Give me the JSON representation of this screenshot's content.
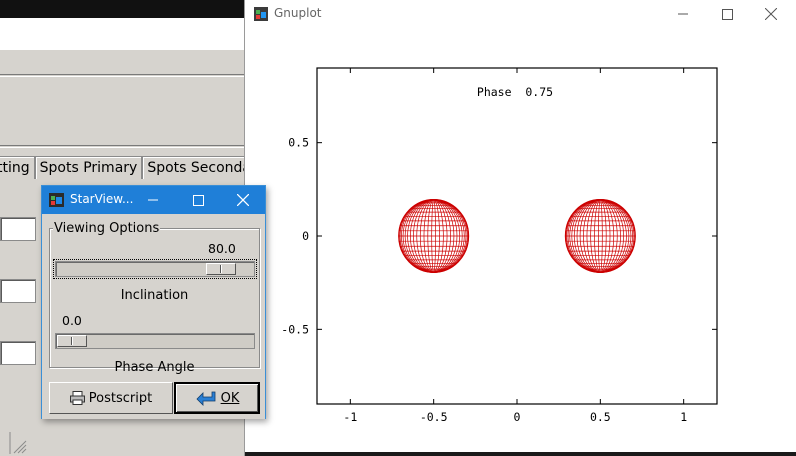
{
  "background_app": {
    "tabs": [
      "tting",
      "Spots Primary",
      "Spots Secondary"
    ]
  },
  "gnuplot_window": {
    "title": "Gnuplot",
    "icons": {
      "app": "gnuplot-icon",
      "minimize": "minimize-icon",
      "maximize": "maximize-icon",
      "close": "close-icon"
    }
  },
  "starview_dialog": {
    "title": "StarView...",
    "group_label": "Viewing Options",
    "inclination": {
      "label": "Inclination",
      "value_text": "80.0",
      "value": 80.0,
      "min": 0,
      "max": 90
    },
    "phase_angle": {
      "label": "Phase Angle",
      "value_text": "0.0",
      "value": 0.0,
      "min": 0,
      "max": 1
    },
    "buttons": {
      "postscript": "Postscript",
      "ok": "OK"
    },
    "icons": {
      "postscript": "printer-icon",
      "ok": "return-arrow-icon"
    }
  },
  "chart_data": {
    "type": "scatter",
    "title": "Phase  0.75",
    "xlabel": "",
    "ylabel": "",
    "xlim": [
      -1.2,
      1.2
    ],
    "ylim": [
      -0.9,
      0.9
    ],
    "xticks": [
      -1,
      -0.5,
      0,
      0.5,
      1
    ],
    "xtick_labels": [
      "-1",
      "-0.5",
      "0",
      "0.5",
      "1"
    ],
    "yticks": [
      0.5,
      0,
      -0.5
    ],
    "ytick_labels": [
      "0.5",
      "0",
      "-0.5"
    ],
    "grid": false,
    "legend": "none",
    "color": "#cc0000",
    "series": [
      {
        "shape": "sphere-wireframe",
        "center": [
          -0.5,
          0
        ],
        "radius": 0.21
      },
      {
        "shape": "sphere-wireframe",
        "center": [
          0.5,
          0
        ],
        "radius": 0.21
      }
    ]
  }
}
